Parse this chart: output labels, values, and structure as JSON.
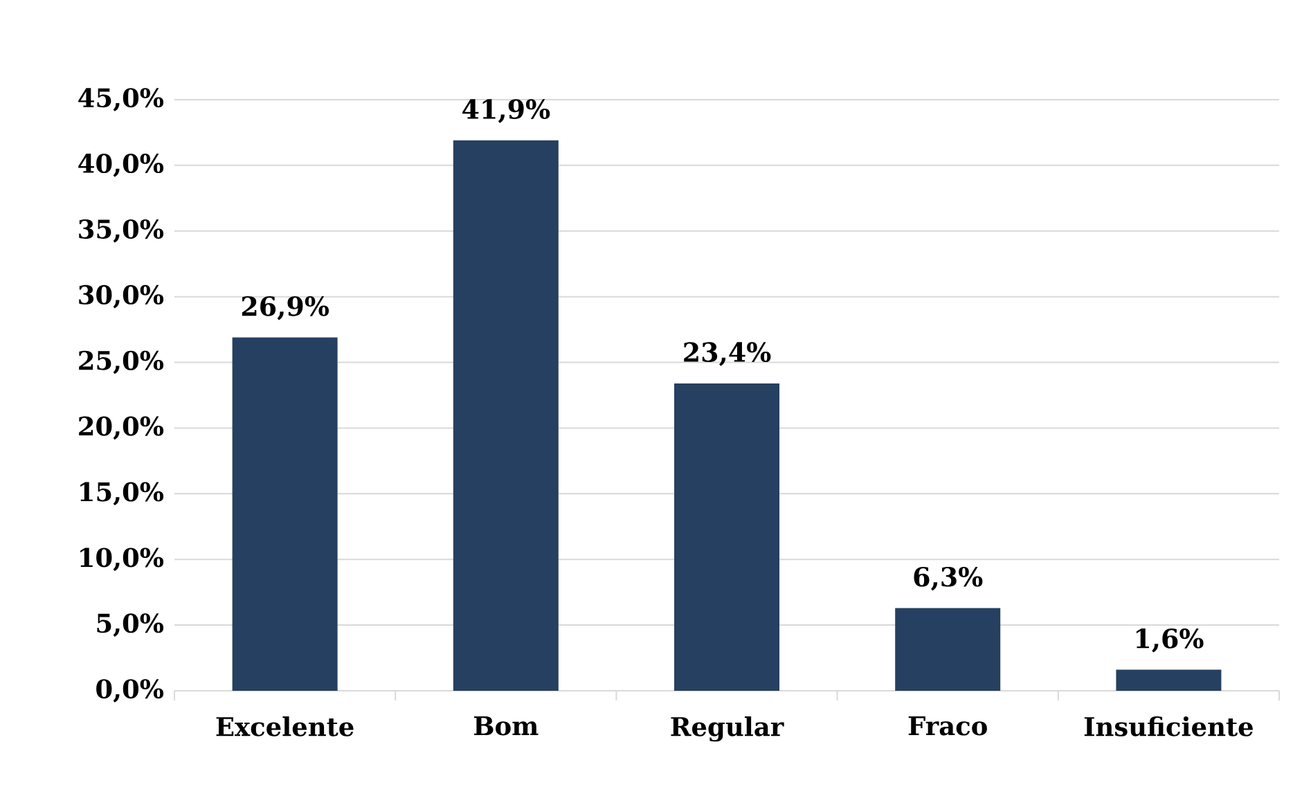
{
  "chart_data": {
    "type": "bar",
    "categories": [
      "Excelente",
      "Bom",
      "Regular",
      "Fraco",
      "Insuficiente"
    ],
    "values": [
      26.9,
      41.9,
      23.4,
      6.3,
      1.6
    ],
    "value_labels": [
      "26,9%",
      "41,9%",
      "23,4%",
      "6,3%",
      "1,6%"
    ],
    "color": "#264061",
    "ylim": [
      0,
      45
    ],
    "yticks": [
      {
        "value": 0,
        "label": "0,0%"
      },
      {
        "value": 5,
        "label": "5,0%"
      },
      {
        "value": 10,
        "label": "10,0%"
      },
      {
        "value": 15,
        "label": "15,0%"
      },
      {
        "value": 20,
        "label": "20,0%"
      },
      {
        "value": 25,
        "label": "25,0%"
      },
      {
        "value": 30,
        "label": "30,0%"
      },
      {
        "value": 35,
        "label": "35,0%"
      },
      {
        "value": 40,
        "label": "40,0%"
      },
      {
        "value": 45,
        "label": "45,0%"
      }
    ],
    "grid": "y"
  }
}
